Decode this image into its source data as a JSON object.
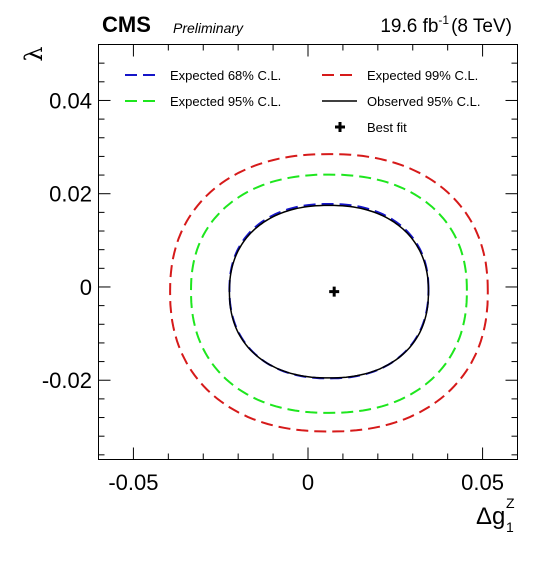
{
  "header": {
    "experiment": "CMS",
    "status": "Preliminary",
    "lumi": "19.6 fb",
    "lumi_exp": "-1",
    "energy": "(8 TeV)"
  },
  "chart_data": {
    "type": "line",
    "xlabel": {
      "prefix": "Δg",
      "sub": "1",
      "sup": "Z"
    },
    "ylabel": "λ",
    "xlim": [
      -0.06,
      0.06
    ],
    "ylim": [
      -0.037,
      0.052
    ],
    "xticks": [
      {
        "value": -0.05,
        "label": "-0.05"
      },
      {
        "value": 0,
        "label": "0"
      },
      {
        "value": 0.05,
        "label": "0.05"
      }
    ],
    "yticks": [
      {
        "value": -0.02,
        "label": "-0.02"
      },
      {
        "value": 0,
        "label": "0"
      },
      {
        "value": 0.02,
        "label": "0.02"
      },
      {
        "value": 0.04,
        "label": "0.04"
      }
    ],
    "legend_placement": "top",
    "series": [
      {
        "name": "Expected 68% C.L.",
        "color": "#1515c8",
        "style": "dashed",
        "center": [
          0.006,
          -0.0005
        ],
        "rx": 0.0285,
        "ry": 0.0182,
        "y_top": 0.0178,
        "y_bottom": -0.0196
      },
      {
        "name": "Expected 99% C.L.",
        "color": "#d61a1a",
        "style": "dashed",
        "center": [
          0.006,
          -0.001
        ],
        "rx": 0.0455,
        "ry": 0.0296,
        "y_top": 0.0285,
        "y_bottom": -0.031
      },
      {
        "name": "Expected 95% C.L.",
        "color": "#1ee61e",
        "style": "dashed",
        "center": [
          0.006,
          -0.0008
        ],
        "rx": 0.0395,
        "ry": 0.0253,
        "y_top": 0.0241,
        "y_bottom": -0.027
      },
      {
        "name": "Observed 95% C.L.",
        "color": "#000000",
        "style": "solid",
        "center": [
          0.006,
          -0.001
        ],
        "rx": 0.0285,
        "ry": 0.0185,
        "y_top": 0.0175,
        "y_bottom": -0.0195
      }
    ],
    "best_fit": {
      "name": "Best fit",
      "x": 0.0075,
      "y": -0.001
    }
  }
}
